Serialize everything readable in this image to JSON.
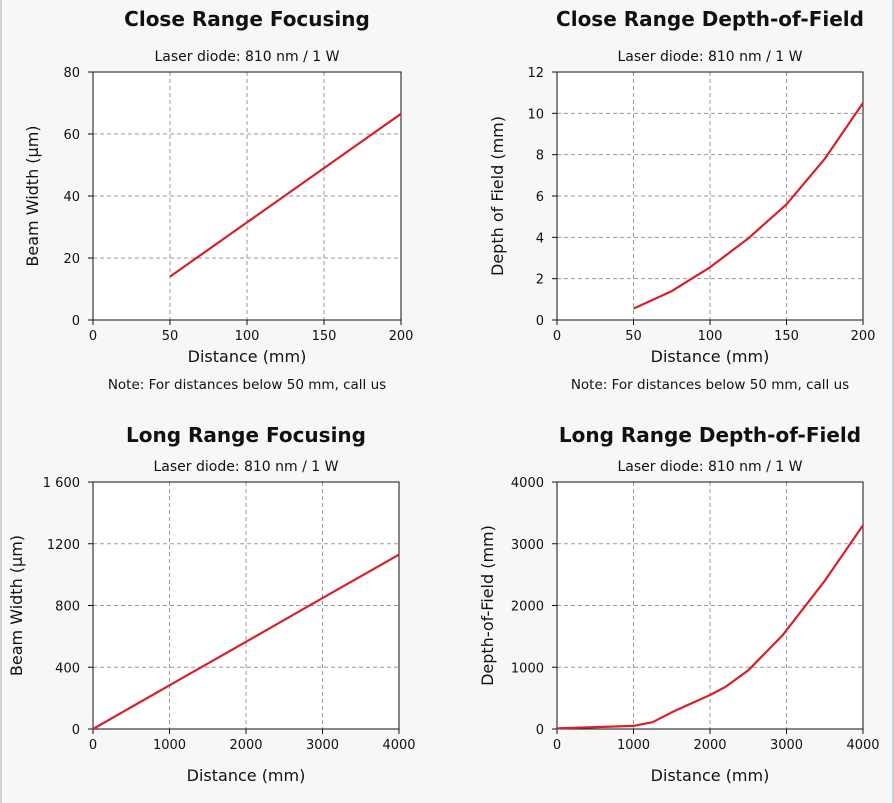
{
  "colors": {
    "line": "#d81f2a",
    "grid": "#9a9a9a",
    "background": "#ffffff"
  },
  "chart_data": [
    {
      "type": "line",
      "title": "Close Range Focusing",
      "subtitle": "Laser diode: 810 nm / 1 W",
      "xlabel": "Distance (mm)",
      "ylabel": "Beam Width (µm)",
      "note": "Note: For distances below 50 mm, call us",
      "xlim": [
        0,
        200
      ],
      "ylim": [
        0,
        80
      ],
      "xticks": [
        0,
        50,
        100,
        150,
        200
      ],
      "yticks": [
        0,
        20,
        40,
        60,
        80
      ],
      "xtick_labels": [
        "0",
        "50",
        "100",
        "150",
        "200"
      ],
      "ytick_labels": [
        "0",
        "20",
        "40",
        "60",
        "80"
      ],
      "grid": true,
      "series": [
        {
          "x": [
            50,
            100,
            150,
            200
          ],
          "y": [
            14,
            31.5,
            49,
            66.5
          ]
        }
      ]
    },
    {
      "type": "line",
      "title": "Close Range Depth-of-Field",
      "subtitle": "Laser diode: 810 nm / 1 W",
      "xlabel": "Distance (mm)",
      "ylabel": "Depth of Field (mm)",
      "note": "Note: For distances below 50 mm, call us",
      "xlim": [
        0,
        200
      ],
      "ylim": [
        0,
        12
      ],
      "xticks": [
        0,
        50,
        100,
        150,
        200
      ],
      "yticks": [
        0,
        2,
        4,
        6,
        8,
        10,
        12
      ],
      "xtick_labels": [
        "0",
        "50",
        "100",
        "150",
        "200"
      ],
      "ytick_labels": [
        "0",
        "2",
        "4",
        "6",
        "8",
        "10",
        "12"
      ],
      "grid": true,
      "series": [
        {
          "x": [
            50,
            75,
            100,
            125,
            150,
            175,
            200
          ],
          "y": [
            0.55,
            1.4,
            2.55,
            3.95,
            5.6,
            7.8,
            10.5
          ]
        }
      ]
    },
    {
      "type": "line",
      "title": "Long Range Focusing",
      "subtitle": "Laser diode: 810 nm / 1 W",
      "xlabel": "Distance (mm)",
      "ylabel": "Beam Width (µm)",
      "note": "",
      "xlim": [
        0,
        4000
      ],
      "ylim": [
        0,
        1600
      ],
      "xticks": [
        0,
        1000,
        2000,
        3000,
        4000
      ],
      "yticks": [
        0,
        400,
        800,
        1200,
        1600
      ],
      "xtick_labels": [
        "0",
        "1000",
        "2000",
        "3000",
        "4000"
      ],
      "ytick_labels": [
        "0",
        "400",
        "800",
        "1200",
        "1 600"
      ],
      "grid": true,
      "series": [
        {
          "x": [
            0,
            1000,
            2000,
            3000,
            4000
          ],
          "y": [
            0,
            283,
            565,
            848,
            1130
          ]
        }
      ]
    },
    {
      "type": "line",
      "title": "Long Range Depth-of-Field",
      "subtitle": "Laser diode: 810 nm / 1 W",
      "xlabel": "Distance (mm)",
      "ylabel": "Depth-of-Field (mm)",
      "note": "",
      "xlim": [
        0,
        4000
      ],
      "ylim": [
        0,
        4000
      ],
      "xticks": [
        0,
        1000,
        2000,
        3000,
        4000
      ],
      "yticks": [
        0,
        1000,
        2000,
        3000,
        4000
      ],
      "xtick_labels": [
        "0",
        "1000",
        "2000",
        "3000",
        "4000"
      ],
      "ytick_labels": [
        "0",
        "1000",
        "2000",
        "3000",
        "4000"
      ],
      "grid": true,
      "series": [
        {
          "x": [
            0,
            1000,
            1250,
            1500,
            2000,
            2200,
            2500,
            2950,
            3500,
            4000
          ],
          "y": [
            10,
            50,
            110,
            270,
            550,
            680,
            950,
            1520,
            2400,
            3300
          ]
        }
      ]
    }
  ]
}
